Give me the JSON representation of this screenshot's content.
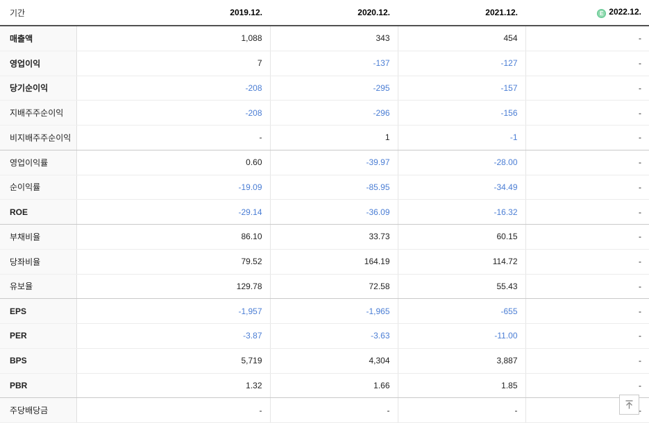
{
  "table": {
    "period_label": "기간",
    "columns": [
      {
        "label": "2019.12.",
        "estimate": false
      },
      {
        "label": "2020.12.",
        "estimate": false
      },
      {
        "label": "2021.12.",
        "estimate": false
      },
      {
        "label": "2022.12.",
        "estimate": true
      }
    ],
    "estimate_icon_letter": "E",
    "rows": [
      {
        "label": "매출액",
        "bold": true,
        "group_end": false,
        "values": [
          "1,088",
          "343",
          "454",
          "-"
        ]
      },
      {
        "label": "영업이익",
        "bold": true,
        "group_end": false,
        "values": [
          "7",
          "-137",
          "-127",
          "-"
        ]
      },
      {
        "label": "당기순이익",
        "bold": true,
        "group_end": false,
        "values": [
          "-208",
          "-295",
          "-157",
          "-"
        ]
      },
      {
        "label": "지배주주순이익",
        "bold": false,
        "group_end": false,
        "values": [
          "-208",
          "-296",
          "-156",
          "-"
        ]
      },
      {
        "label": "비지배주주순이익",
        "bold": false,
        "group_end": true,
        "values": [
          "-",
          "1",
          "-1",
          "-"
        ]
      },
      {
        "label": "영업이익률",
        "bold": false,
        "group_end": false,
        "values": [
          "0.60",
          "-39.97",
          "-28.00",
          "-"
        ]
      },
      {
        "label": "순이익률",
        "bold": false,
        "group_end": false,
        "values": [
          "-19.09",
          "-85.95",
          "-34.49",
          "-"
        ]
      },
      {
        "label": "ROE",
        "bold": true,
        "group_end": true,
        "values": [
          "-29.14",
          "-36.09",
          "-16.32",
          "-"
        ]
      },
      {
        "label": "부채비율",
        "bold": false,
        "group_end": false,
        "values": [
          "86.10",
          "33.73",
          "60.15",
          "-"
        ]
      },
      {
        "label": "당좌비율",
        "bold": false,
        "group_end": false,
        "values": [
          "79.52",
          "164.19",
          "114.72",
          "-"
        ]
      },
      {
        "label": "유보율",
        "bold": false,
        "group_end": true,
        "values": [
          "129.78",
          "72.58",
          "55.43",
          "-"
        ]
      },
      {
        "label": "EPS",
        "bold": true,
        "group_end": false,
        "values": [
          "-1,957",
          "-1,965",
          "-655",
          "-"
        ]
      },
      {
        "label": "PER",
        "bold": true,
        "group_end": false,
        "values": [
          "-3.87",
          "-3.63",
          "-11.00",
          "-"
        ]
      },
      {
        "label": "BPS",
        "bold": true,
        "group_end": false,
        "values": [
          "5,719",
          "4,304",
          "3,887",
          "-"
        ]
      },
      {
        "label": "PBR",
        "bold": true,
        "group_end": true,
        "values": [
          "1.32",
          "1.66",
          "1.85",
          "-"
        ]
      },
      {
        "label": "주당배당금",
        "bold": false,
        "group_end": false,
        "values": [
          "-",
          "-",
          "-",
          "-"
        ]
      }
    ]
  },
  "colors": {
    "negative_value": "#4a7dd4",
    "positive_value": "#222222",
    "estimate_green": "#5bc58d",
    "header_border": "#505050"
  },
  "scroll_top_button": {
    "icon": "arrow-up-to-top"
  }
}
